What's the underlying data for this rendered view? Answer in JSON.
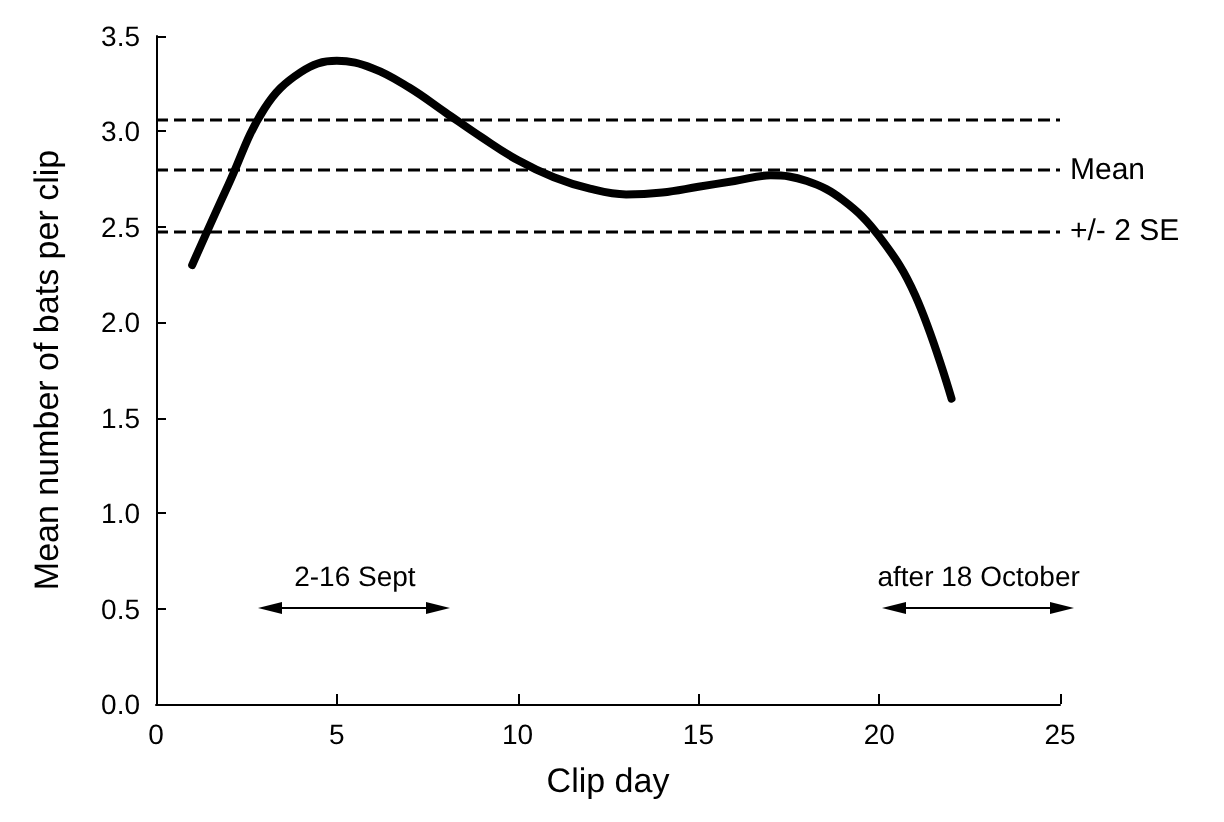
{
  "chart_data": {
    "type": "line",
    "xlabel": "Clip day",
    "ylabel": "Mean number of bats per clip",
    "x": [
      1,
      2,
      3,
      4,
      5,
      6,
      7,
      8,
      9,
      10,
      11,
      12,
      13,
      14,
      15,
      16,
      17,
      18,
      19,
      20,
      21,
      22
    ],
    "series": [
      {
        "color": "#000000",
        "values": [
          2.3,
          2.72,
          3.12,
          3.31,
          3.37,
          3.33,
          3.23,
          3.1,
          2.97,
          2.85,
          2.76,
          2.7,
          2.67,
          2.68,
          2.71,
          2.74,
          2.77,
          2.74,
          2.64,
          2.45,
          2.14,
          1.6
        ]
      }
    ],
    "xlim": [
      0,
      25
    ],
    "xticks": [
      0,
      5,
      10,
      15,
      20,
      25
    ],
    "ylim": [
      0,
      3.5
    ],
    "yticks": [
      {
        "value": 0,
        "label": "0.0"
      },
      {
        "value": 0.5,
        "label": "0.5"
      },
      {
        "value": 1,
        "label": "1.0"
      },
      {
        "value": 1.5,
        "label": "1.5"
      },
      {
        "value": 2,
        "label": "2.0"
      },
      {
        "value": 2.5,
        "label": "2.5"
      },
      {
        "value": 3,
        "label": "3.0"
      },
      {
        "value": 3.5,
        "label": "3.5"
      }
    ],
    "ref_lines": [
      {
        "axis": "y",
        "value": 3.06,
        "line_style": "dashed",
        "color": "#000000"
      },
      {
        "axis": "y",
        "value": 2.8,
        "label": "Mean",
        "line_style": "dashed",
        "color": "#000000"
      },
      {
        "axis": "y",
        "value": 2.48,
        "label": "+/- 2 SE",
        "line_style": "dashed",
        "color": "#000000"
      }
    ],
    "annotations": [
      "2-16 Sept",
      "after 18 October"
    ],
    "grid": false,
    "marker": "none",
    "line_style": "solid"
  }
}
